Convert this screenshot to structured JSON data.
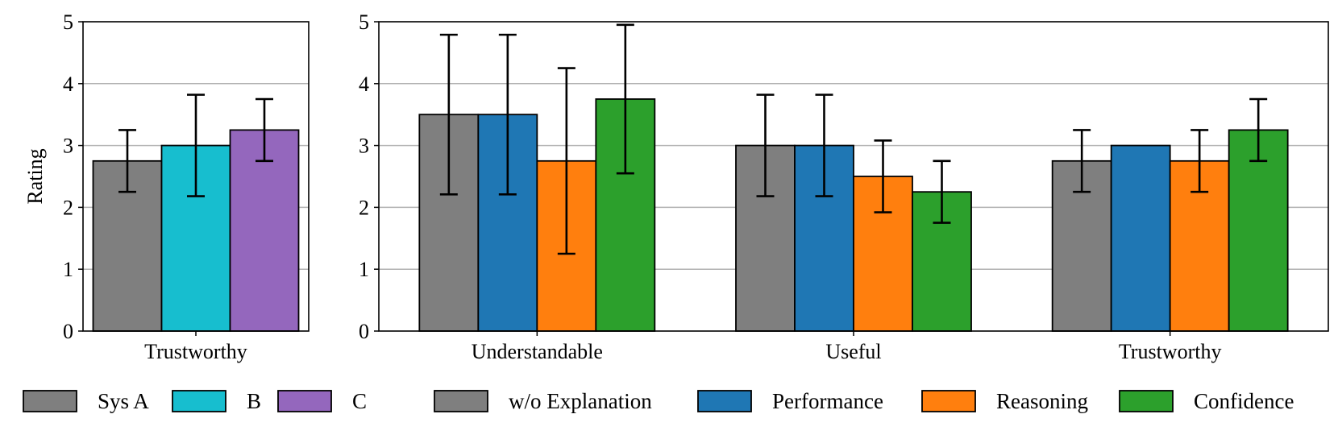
{
  "chart_data": [
    {
      "type": "bar",
      "ylabel": "Rating",
      "ylim": [
        0,
        5
      ],
      "yticks": [
        0,
        1,
        2,
        3,
        4,
        5
      ],
      "grid": "horizontal",
      "categories": [
        "Trustworthy"
      ],
      "series": [
        {
          "name": "Sys A",
          "color": "#7f7f7f",
          "values": [
            2.75
          ],
          "errors": [
            [
              2.25,
              3.25
            ]
          ]
        },
        {
          "name": "B",
          "color": "#17becf",
          "values": [
            3.0
          ],
          "errors": [
            [
              2.18,
              3.82
            ]
          ]
        },
        {
          "name": "C",
          "color": "#9467bd",
          "values": [
            3.25
          ],
          "errors": [
            [
              2.75,
              3.75
            ]
          ]
        }
      ],
      "legend": "bottom"
    },
    {
      "type": "bar",
      "ylabel": "",
      "ylim": [
        0,
        5
      ],
      "yticks": [
        0,
        1,
        2,
        3,
        4,
        5
      ],
      "grid": "horizontal",
      "categories": [
        "Understandable",
        "Useful",
        "Trustworthy"
      ],
      "series": [
        {
          "name": "w/o Explanation",
          "color": "#7f7f7f",
          "values": [
            3.5,
            3.0,
            2.75
          ],
          "errors": [
            [
              2.21,
              4.79
            ],
            [
              2.18,
              3.82
            ],
            [
              2.25,
              3.25
            ]
          ]
        },
        {
          "name": "Performance",
          "color": "#1f77b4",
          "values": [
            3.5,
            3.0,
            3.0
          ],
          "errors": [
            [
              2.21,
              4.79
            ],
            [
              2.18,
              3.82
            ],
            null
          ]
        },
        {
          "name": "Reasoning",
          "color": "#ff7f0e",
          "values": [
            2.75,
            2.5,
            2.75
          ],
          "errors": [
            [
              1.25,
              4.25
            ],
            [
              1.92,
              3.08
            ],
            [
              2.25,
              3.25
            ]
          ]
        },
        {
          "name": "Confidence",
          "color": "#2ca02c",
          "values": [
            3.75,
            2.25,
            3.25
          ],
          "errors": [
            [
              2.55,
              4.95
            ],
            [
              1.75,
              2.75
            ],
            [
              2.75,
              3.75
            ]
          ]
        }
      ],
      "legend": "bottom"
    }
  ]
}
